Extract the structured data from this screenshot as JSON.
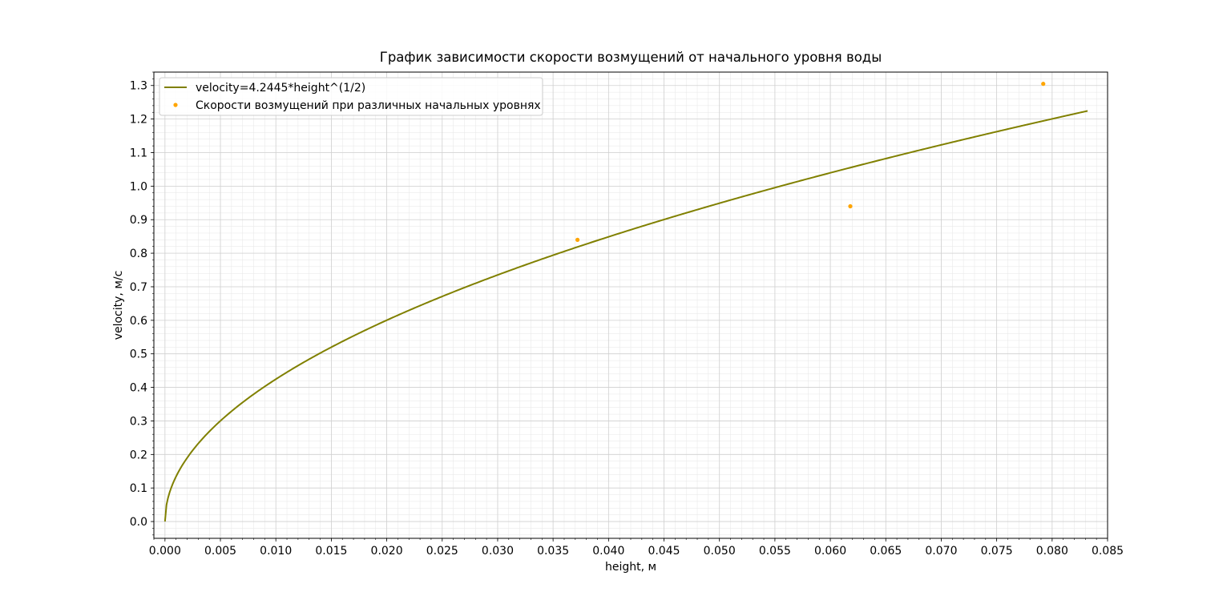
{
  "chart_data": {
    "type": "line",
    "title": "График зависимости скорости возмущений от начального уровня воды",
    "xlabel": "height, м",
    "ylabel": "velocity, м/с",
    "xlim": [
      -0.001,
      0.085
    ],
    "ylim": [
      -0.05,
      1.34
    ],
    "x_ticks": [
      0.0,
      0.005,
      0.01,
      0.015,
      0.02,
      0.025,
      0.03,
      0.035,
      0.04,
      0.045,
      0.05,
      0.055,
      0.06,
      0.065,
      0.07,
      0.075,
      0.08,
      0.085
    ],
    "x_tick_labels": [
      "0.000",
      "0.005",
      "0.010",
      "0.015",
      "0.020",
      "0.025",
      "0.030",
      "0.035",
      "0.040",
      "0.045",
      "0.050",
      "0.055",
      "0.060",
      "0.065",
      "0.070",
      "0.075",
      "0.080",
      "0.085"
    ],
    "y_ticks": [
      0.0,
      0.1,
      0.2,
      0.3,
      0.4,
      0.5,
      0.6,
      0.7,
      0.8,
      0.9,
      1.0,
      1.1,
      1.2,
      1.3
    ],
    "y_tick_labels": [
      "0.0",
      "0.1",
      "0.2",
      "0.3",
      "0.4",
      "0.5",
      "0.6",
      "0.7",
      "0.8",
      "0.9",
      "1.0",
      "1.1",
      "1.2",
      "1.3"
    ],
    "grid": true,
    "minor_grid": true,
    "legend_position": "top-left",
    "series": [
      {
        "name": "velocity=4.2445*height^(1/2)",
        "kind": "line",
        "color": "#808000",
        "coefficient": 4.2445,
        "exponent": 0.5,
        "x_range": [
          0.0,
          0.0832
        ]
      },
      {
        "name": "Скорости возмущений при различных начальных уровнях",
        "kind": "scatter",
        "color": "#ffa500",
        "points": [
          {
            "x": 0.0372,
            "y": 0.84
          },
          {
            "x": 0.0618,
            "y": 0.94
          },
          {
            "x": 0.0792,
            "y": 1.305
          }
        ]
      }
    ]
  }
}
